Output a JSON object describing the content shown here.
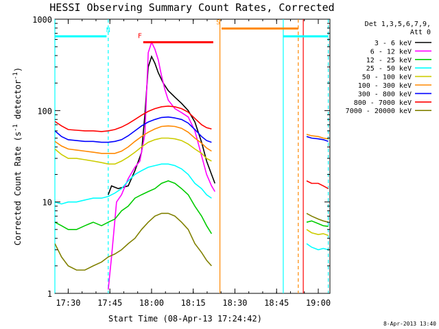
{
  "chart_data": {
    "type": "line",
    "title": "HESSI Observing Summary Count Rates, Corrected",
    "xlabel": "Start Time (08-Apr-13 17:24:42)",
    "ylabel": "Corrected Count Rate (s⁻¹ detector⁻¹)",
    "ylabel_parts": {
      "main": "Corrected Count Rate (s",
      "sup1": "-1",
      "mid": " detector",
      "sup2": "-1",
      "end": ")"
    },
    "y_scale": "log",
    "xlim": [
      17.42,
      19.07
    ],
    "ylim": [
      1,
      1000
    ],
    "x_ticks": [
      {
        "value": 17.5,
        "label": "17:30"
      },
      {
        "value": 17.75,
        "label": "17:45"
      },
      {
        "value": 18.0,
        "label": "18:00"
      },
      {
        "value": 18.25,
        "label": "18:15"
      },
      {
        "value": 18.5,
        "label": "18:30"
      },
      {
        "value": 18.75,
        "label": "18:45"
      },
      {
        "value": 19.0,
        "label": "19:00"
      }
    ],
    "y_ticks": [
      {
        "value": 1,
        "label": "1"
      },
      {
        "value": 10,
        "label": "10"
      },
      {
        "value": 100,
        "label": "100"
      },
      {
        "value": 1000,
        "label": "1000"
      }
    ],
    "legend": {
      "header_lines": [
        "Det 1,3,5,6,7,9,",
        "Att 0"
      ],
      "placement": "right"
    },
    "stamp": "8-Apr-2013 13:40",
    "series": [
      {
        "name": "3 - 6 keV",
        "color": "#000000",
        "points": [
          [
            17.74,
            12
          ],
          [
            17.76,
            15
          ],
          [
            17.8,
            14
          ],
          [
            17.86,
            15
          ],
          [
            17.9,
            22
          ],
          [
            17.94,
            35
          ],
          [
            17.96,
            90
          ],
          [
            17.98,
            300
          ],
          [
            18.0,
            390
          ],
          [
            18.02,
            330
          ],
          [
            18.04,
            260
          ],
          [
            18.07,
            200
          ],
          [
            18.1,
            165
          ],
          [
            18.14,
            140
          ],
          [
            18.18,
            120
          ],
          [
            18.22,
            100
          ],
          [
            18.26,
            75
          ],
          [
            18.3,
            45
          ],
          [
            18.33,
            28
          ],
          [
            18.36,
            20
          ],
          [
            18.38,
            16
          ]
        ]
      },
      {
        "name": "6 - 12 keV",
        "color": "#ff00ff",
        "points": [
          [
            17.74,
            1.1
          ],
          [
            17.76,
            2.5
          ],
          [
            17.79,
            10
          ],
          [
            17.82,
            12
          ],
          [
            17.86,
            18
          ],
          [
            17.9,
            24
          ],
          [
            17.93,
            28
          ],
          [
            17.96,
            55
          ],
          [
            17.98,
            430
          ],
          [
            18.0,
            560
          ],
          [
            18.02,
            470
          ],
          [
            18.04,
            360
          ],
          [
            18.06,
            240
          ],
          [
            18.08,
            170
          ],
          [
            18.1,
            130
          ],
          [
            18.14,
            105
          ],
          [
            18.18,
            95
          ],
          [
            18.22,
            85
          ],
          [
            18.26,
            60
          ],
          [
            18.3,
            32
          ],
          [
            18.33,
            20
          ],
          [
            18.36,
            15
          ],
          [
            18.38,
            13
          ]
        ]
      },
      {
        "name": "12 - 25 keV",
        "color": "#00cc00",
        "points": [
          [
            17.42,
            6
          ],
          [
            17.46,
            5.5
          ],
          [
            17.5,
            5
          ],
          [
            17.55,
            5
          ],
          [
            17.6,
            5.5
          ],
          [
            17.65,
            6
          ],
          [
            17.7,
            5.5
          ],
          [
            17.74,
            6
          ],
          [
            17.78,
            6.5
          ],
          [
            17.82,
            8
          ],
          [
            17.86,
            9
          ],
          [
            17.9,
            11
          ],
          [
            17.94,
            12
          ],
          [
            17.98,
            13
          ],
          [
            18.02,
            14
          ],
          [
            18.06,
            16
          ],
          [
            18.1,
            17
          ],
          [
            18.14,
            16
          ],
          [
            18.18,
            14
          ],
          [
            18.22,
            12
          ],
          [
            18.26,
            9
          ],
          [
            18.3,
            7
          ],
          [
            18.33,
            5.5
          ],
          [
            18.36,
            4.5
          ]
        ],
        "segments": [
          [
            [
              18.93,
              6
            ],
            [
              18.96,
              6.2
            ],
            [
              19.0,
              5.8
            ],
            [
              19.03,
              5.5
            ],
            [
              19.06,
              5.4
            ]
          ]
        ]
      },
      {
        "name": "25 - 50 keV",
        "color": "#00ffff",
        "points": [
          [
            17.42,
            10
          ],
          [
            17.46,
            9.5
          ],
          [
            17.5,
            10
          ],
          [
            17.55,
            10
          ],
          [
            17.6,
            10.5
          ],
          [
            17.65,
            11
          ],
          [
            17.7,
            11
          ],
          [
            17.74,
            11.5
          ],
          [
            17.78,
            12.5
          ],
          [
            17.82,
            14
          ],
          [
            17.86,
            17
          ],
          [
            17.9,
            20
          ],
          [
            17.94,
            22
          ],
          [
            17.98,
            24
          ],
          [
            18.02,
            25
          ],
          [
            18.06,
            26
          ],
          [
            18.1,
            26
          ],
          [
            18.14,
            25
          ],
          [
            18.18,
            23
          ],
          [
            18.22,
            20
          ],
          [
            18.26,
            16
          ],
          [
            18.3,
            14
          ],
          [
            18.33,
            12
          ],
          [
            18.36,
            11
          ]
        ],
        "segments": [
          [
            [
              18.93,
              3.5
            ],
            [
              18.96,
              3.2
            ],
            [
              19.0,
              3.0
            ],
            [
              19.03,
              3.1
            ],
            [
              19.06,
              3.0
            ]
          ]
        ]
      },
      {
        "name": "50 - 100 keV",
        "color": "#cccc00",
        "points": [
          [
            17.42,
            38
          ],
          [
            17.46,
            33
          ],
          [
            17.5,
            30
          ],
          [
            17.55,
            30
          ],
          [
            17.6,
            29
          ],
          [
            17.65,
            28
          ],
          [
            17.7,
            27
          ],
          [
            17.74,
            26
          ],
          [
            17.78,
            26
          ],
          [
            17.82,
            28
          ],
          [
            17.86,
            31
          ],
          [
            17.9,
            35
          ],
          [
            17.94,
            40
          ],
          [
            17.98,
            45
          ],
          [
            18.02,
            48
          ],
          [
            18.06,
            50
          ],
          [
            18.1,
            50
          ],
          [
            18.14,
            49
          ],
          [
            18.18,
            47
          ],
          [
            18.22,
            43
          ],
          [
            18.26,
            38
          ],
          [
            18.3,
            34
          ],
          [
            18.33,
            30
          ],
          [
            18.36,
            28
          ]
        ],
        "segments": [
          [
            [
              18.93,
              5
            ],
            [
              18.96,
              4.6
            ],
            [
              19.0,
              4.4
            ],
            [
              19.03,
              4.5
            ],
            [
              19.06,
              4.3
            ]
          ]
        ]
      },
      {
        "name": "100 - 300 keV",
        "color": "#ff8800",
        "points": [
          [
            17.42,
            46
          ],
          [
            17.46,
            41
          ],
          [
            17.5,
            38
          ],
          [
            17.55,
            37
          ],
          [
            17.6,
            36
          ],
          [
            17.65,
            35
          ],
          [
            17.7,
            34
          ],
          [
            17.74,
            34
          ],
          [
            17.78,
            34
          ],
          [
            17.82,
            36
          ],
          [
            17.86,
            40
          ],
          [
            17.9,
            46
          ],
          [
            17.94,
            52
          ],
          [
            17.98,
            58
          ],
          [
            18.02,
            63
          ],
          [
            18.06,
            67
          ],
          [
            18.1,
            68
          ],
          [
            18.14,
            67
          ],
          [
            18.18,
            64
          ],
          [
            18.22,
            58
          ],
          [
            18.26,
            50
          ],
          [
            18.3,
            44
          ],
          [
            18.33,
            39
          ],
          [
            18.36,
            36
          ]
        ],
        "segments": [
          [
            [
              18.93,
              55
            ],
            [
              18.96,
              53
            ],
            [
              19.0,
              52
            ],
            [
              19.03,
              50
            ],
            [
              19.06,
              49
            ]
          ]
        ]
      },
      {
        "name": "300 - 800 keV",
        "color": "#0000ff",
        "points": [
          [
            17.42,
            60
          ],
          [
            17.46,
            52
          ],
          [
            17.5,
            48
          ],
          [
            17.55,
            47
          ],
          [
            17.6,
            46
          ],
          [
            17.65,
            46
          ],
          [
            17.7,
            45
          ],
          [
            17.74,
            45
          ],
          [
            17.78,
            46
          ],
          [
            17.82,
            48
          ],
          [
            17.86,
            53
          ],
          [
            17.9,
            60
          ],
          [
            17.94,
            68
          ],
          [
            17.98,
            75
          ],
          [
            18.02,
            80
          ],
          [
            18.06,
            84
          ],
          [
            18.1,
            85
          ],
          [
            18.14,
            83
          ],
          [
            18.18,
            80
          ],
          [
            18.22,
            73
          ],
          [
            18.26,
            62
          ],
          [
            18.3,
            52
          ],
          [
            18.33,
            47
          ],
          [
            18.36,
            45
          ]
        ],
        "segments": [
          [
            [
              18.93,
              52
            ],
            [
              18.96,
              50
            ],
            [
              19.0,
              49
            ],
            [
              19.03,
              48
            ],
            [
              19.06,
              46
            ]
          ]
        ]
      },
      {
        "name": "800 - 7000 keV",
        "color": "#ff0000",
        "points": [
          [
            17.42,
            76
          ],
          [
            17.46,
            68
          ],
          [
            17.5,
            62
          ],
          [
            17.55,
            61
          ],
          [
            17.6,
            60
          ],
          [
            17.65,
            60
          ],
          [
            17.7,
            59
          ],
          [
            17.74,
            60
          ],
          [
            17.78,
            62
          ],
          [
            17.82,
            66
          ],
          [
            17.86,
            72
          ],
          [
            17.9,
            80
          ],
          [
            17.94,
            89
          ],
          [
            17.98,
            98
          ],
          [
            18.02,
            105
          ],
          [
            18.06,
            110
          ],
          [
            18.1,
            112
          ],
          [
            18.14,
            110
          ],
          [
            18.18,
            105
          ],
          [
            18.22,
            96
          ],
          [
            18.26,
            82
          ],
          [
            18.3,
            70
          ],
          [
            18.33,
            65
          ],
          [
            18.36,
            63
          ]
        ],
        "segments": [
          [
            [
              18.93,
              17
            ],
            [
              18.96,
              16
            ],
            [
              19.0,
              16
            ],
            [
              19.03,
              15
            ],
            [
              19.06,
              14
            ]
          ]
        ]
      },
      {
        "name": "7000 - 20000 keV",
        "color": "#808000",
        "points": [
          [
            17.42,
            3.5
          ],
          [
            17.46,
            2.5
          ],
          [
            17.5,
            2
          ],
          [
            17.55,
            1.8
          ],
          [
            17.6,
            1.8
          ],
          [
            17.65,
            2
          ],
          [
            17.7,
            2.2
          ],
          [
            17.74,
            2.5
          ],
          [
            17.78,
            2.7
          ],
          [
            17.82,
            3
          ],
          [
            17.86,
            3.5
          ],
          [
            17.9,
            4
          ],
          [
            17.94,
            5
          ],
          [
            17.98,
            6
          ],
          [
            18.02,
            7
          ],
          [
            18.06,
            7.5
          ],
          [
            18.1,
            7.5
          ],
          [
            18.14,
            7
          ],
          [
            18.18,
            6
          ],
          [
            18.22,
            5
          ],
          [
            18.26,
            3.5
          ],
          [
            18.3,
            2.8
          ],
          [
            18.33,
            2.3
          ],
          [
            18.36,
            2
          ]
        ],
        "segments": [
          [
            [
              18.93,
              7.5
            ],
            [
              18.96,
              7
            ],
            [
              19.0,
              6.5
            ],
            [
              19.03,
              6.2
            ],
            [
              19.06,
              6
            ]
          ]
        ]
      }
    ],
    "markers": [
      {
        "label": "N",
        "color": "#00ffff",
        "x": [
          17.42,
          17.73
        ],
        "y": 650,
        "label_at": 17.74
      },
      {
        "label": "F",
        "color": "#ff0000",
        "x": [
          17.95,
          18.37
        ],
        "y": 560,
        "label_at": 17.93
      },
      {
        "label": "S",
        "color": "#ff8800",
        "x": [
          18.42,
          18.88
        ],
        "y": 790,
        "label_at": 18.4
      },
      {
        "label": "",
        "color": "#00ffff",
        "x": [
          18.79,
          19.06
        ],
        "y": 650,
        "label_at": null
      }
    ],
    "vlines": [
      {
        "x": 17.42,
        "color": "#00ffff",
        "dash": false
      },
      {
        "x": 17.74,
        "color": "#00ffff",
        "dash": true
      },
      {
        "x": 18.41,
        "color": "#ff8800",
        "dash": false
      },
      {
        "x": 18.79,
        "color": "#00ffff",
        "dash": false
      },
      {
        "x": 18.88,
        "color": "#ff8800",
        "dash": true
      },
      {
        "x": 18.91,
        "color": "#ff0000",
        "dash": false
      },
      {
        "x": 19.06,
        "color": "#00ffff",
        "dash": true
      }
    ]
  }
}
